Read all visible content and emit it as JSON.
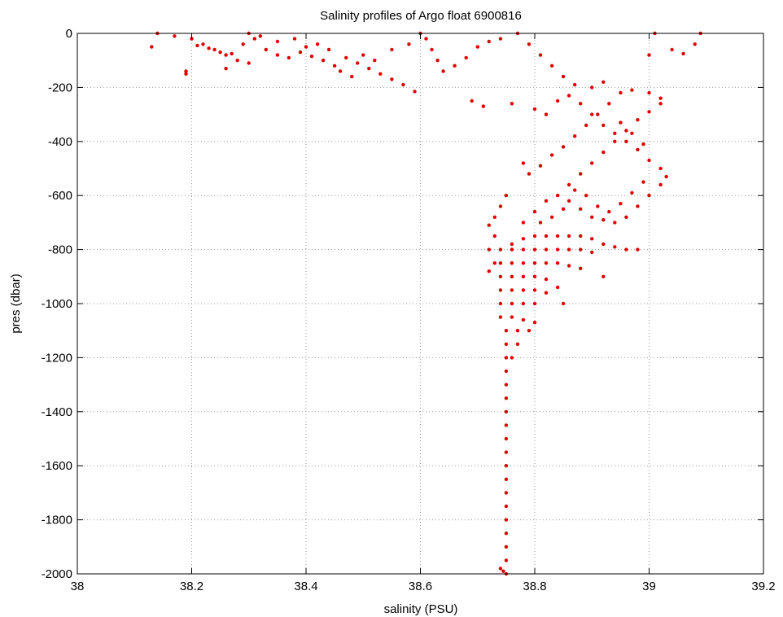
{
  "chart_data": {
    "type": "scatter",
    "title": "Salinity profiles of Argo float 6900816",
    "xlabel": "salinity (PSU)",
    "ylabel": "pres (dbar)",
    "xlim": [
      38,
      39.2
    ],
    "ylim": [
      -2000,
      0
    ],
    "xticks": [
      "38",
      "38.2",
      "38.4",
      "38.6",
      "38.8",
      "39",
      "39.2"
    ],
    "yticks": [
      "0",
      "-200",
      "-400",
      "-600",
      "-800",
      "-1000",
      "-1200",
      "-1400",
      "-1600",
      "-1800",
      "-2000"
    ],
    "grid": true,
    "marker_color": "#e00000",
    "points": [
      [
        38.14,
        0
      ],
      [
        38.17,
        -10
      ],
      [
        38.2,
        -20
      ],
      [
        38.22,
        -40
      ],
      [
        38.24,
        -60
      ],
      [
        38.26,
        -80
      ],
      [
        38.28,
        -100
      ],
      [
        38.3,
        -110
      ],
      [
        38.13,
        -50
      ],
      [
        38.19,
        -140
      ],
      [
        38.19,
        -150
      ],
      [
        38.26,
        -130
      ],
      [
        38.21,
        -45
      ],
      [
        38.23,
        -55
      ],
      [
        38.25,
        -70
      ],
      [
        38.27,
        -75
      ],
      [
        38.29,
        -40
      ],
      [
        38.31,
        -20
      ],
      [
        38.33,
        -60
      ],
      [
        38.35,
        -80
      ],
      [
        38.37,
        -90
      ],
      [
        38.39,
        -70
      ],
      [
        38.41,
        -85
      ],
      [
        38.43,
        -100
      ],
      [
        38.45,
        -120
      ],
      [
        38.47,
        -90
      ],
      [
        38.49,
        -110
      ],
      [
        38.51,
        -130
      ],
      [
        38.53,
        -150
      ],
      [
        38.55,
        -170
      ],
      [
        38.57,
        -190
      ],
      [
        38.59,
        -215
      ],
      [
        38.3,
        0
      ],
      [
        38.32,
        -10
      ],
      [
        38.35,
        -30
      ],
      [
        38.38,
        -20
      ],
      [
        38.4,
        -50
      ],
      [
        38.42,
        -40
      ],
      [
        38.44,
        -60
      ],
      [
        38.46,
        -140
      ],
      [
        38.48,
        -160
      ],
      [
        38.5,
        -80
      ],
      [
        38.52,
        -100
      ],
      [
        38.55,
        -60
      ],
      [
        38.58,
        -40
      ],
      [
        38.6,
        0
      ],
      [
        38.61,
        -20
      ],
      [
        38.62,
        -60
      ],
      [
        38.63,
        -100
      ],
      [
        38.64,
        -140
      ],
      [
        38.66,
        -120
      ],
      [
        38.68,
        -90
      ],
      [
        38.7,
        -50
      ],
      [
        38.72,
        -30
      ],
      [
        38.74,
        -20
      ],
      [
        38.77,
        0
      ],
      [
        38.79,
        -40
      ],
      [
        38.81,
        -80
      ],
      [
        38.83,
        -120
      ],
      [
        38.85,
        -160
      ],
      [
        38.87,
        -190
      ],
      [
        38.9,
        -200
      ],
      [
        38.92,
        -180
      ],
      [
        38.95,
        -220
      ],
      [
        38.97,
        -210
      ],
      [
        39.0,
        -220
      ],
      [
        39.02,
        -240
      ],
      [
        39.01,
        0
      ],
      [
        39.0,
        -80
      ],
      [
        39.04,
        -60
      ],
      [
        39.06,
        -75
      ],
      [
        39.09,
        0
      ],
      [
        39.08,
        -40
      ],
      [
        38.69,
        -250
      ],
      [
        38.71,
        -270
      ],
      [
        38.76,
        -260
      ],
      [
        38.8,
        -280
      ],
      [
        38.82,
        -300
      ],
      [
        38.84,
        -250
      ],
      [
        38.86,
        -230
      ],
      [
        38.88,
        -260
      ],
      [
        38.9,
        -300
      ],
      [
        38.92,
        -340
      ],
      [
        38.94,
        -370
      ],
      [
        38.96,
        -400
      ],
      [
        38.98,
        -430
      ],
      [
        39.0,
        -470
      ],
      [
        39.02,
        -500
      ],
      [
        39.03,
        -530
      ],
      [
        39.02,
        -560
      ],
      [
        39.0,
        -600
      ],
      [
        38.98,
        -640
      ],
      [
        38.96,
        -680
      ],
      [
        38.94,
        -700
      ],
      [
        38.92,
        -690
      ],
      [
        38.9,
        -680
      ],
      [
        38.88,
        -650
      ],
      [
        38.86,
        -620
      ],
      [
        38.84,
        -600
      ],
      [
        38.82,
        -620
      ],
      [
        38.8,
        -660
      ],
      [
        38.78,
        -700
      ],
      [
        38.86,
        -560
      ],
      [
        38.88,
        -520
      ],
      [
        38.9,
        -480
      ],
      [
        38.92,
        -440
      ],
      [
        38.94,
        -400
      ],
      [
        38.96,
        -360
      ],
      [
        38.98,
        -320
      ],
      [
        39.0,
        -290
      ],
      [
        39.02,
        -260
      ],
      [
        38.85,
        -420
      ],
      [
        38.83,
        -450
      ],
      [
        38.81,
        -490
      ],
      [
        38.79,
        -520
      ],
      [
        38.78,
        -480
      ],
      [
        38.87,
        -380
      ],
      [
        38.89,
        -340
      ],
      [
        38.91,
        -300
      ],
      [
        38.93,
        -260
      ],
      [
        38.95,
        -330
      ],
      [
        38.97,
        -370
      ],
      [
        38.99,
        -410
      ],
      [
        38.99,
        -550
      ],
      [
        38.97,
        -590
      ],
      [
        38.95,
        -630
      ],
      [
        38.93,
        -660
      ],
      [
        38.91,
        -640
      ],
      [
        38.89,
        -600
      ],
      [
        38.87,
        -580
      ],
      [
        38.85,
        -650
      ],
      [
        38.83,
        -680
      ],
      [
        38.81,
        -700
      ],
      [
        38.75,
        -600
      ],
      [
        38.74,
        -640
      ],
      [
        38.73,
        -680
      ],
      [
        38.72,
        -710
      ],
      [
        38.73,
        -750
      ],
      [
        38.72,
        -800
      ],
      [
        38.73,
        -850
      ],
      [
        38.72,
        -880
      ],
      [
        38.76,
        -780
      ],
      [
        38.78,
        -760
      ],
      [
        38.8,
        -750
      ],
      [
        38.82,
        -750
      ],
      [
        38.84,
        -750
      ],
      [
        38.86,
        -750
      ],
      [
        38.88,
        -750
      ],
      [
        38.9,
        -760
      ],
      [
        38.92,
        -780
      ],
      [
        38.94,
        -790
      ],
      [
        38.96,
        -800
      ],
      [
        38.98,
        -800
      ],
      [
        38.74,
        -800
      ],
      [
        38.76,
        -800
      ],
      [
        38.78,
        -800
      ],
      [
        38.8,
        -800
      ],
      [
        38.82,
        -800
      ],
      [
        38.84,
        -800
      ],
      [
        38.86,
        -800
      ],
      [
        38.88,
        -800
      ],
      [
        38.9,
        -810
      ],
      [
        38.74,
        -850
      ],
      [
        38.76,
        -850
      ],
      [
        38.78,
        -850
      ],
      [
        38.8,
        -850
      ],
      [
        38.82,
        -850
      ],
      [
        38.84,
        -850
      ],
      [
        38.86,
        -860
      ],
      [
        38.88,
        -870
      ],
      [
        38.92,
        -900
      ],
      [
        38.74,
        -900
      ],
      [
        38.76,
        -900
      ],
      [
        38.78,
        -900
      ],
      [
        38.8,
        -900
      ],
      [
        38.82,
        -910
      ],
      [
        38.84,
        -940
      ],
      [
        38.74,
        -950
      ],
      [
        38.76,
        -950
      ],
      [
        38.78,
        -950
      ],
      [
        38.8,
        -950
      ],
      [
        38.82,
        -960
      ],
      [
        38.74,
        -1000
      ],
      [
        38.76,
        -1000
      ],
      [
        38.78,
        -1000
      ],
      [
        38.8,
        -1000
      ],
      [
        38.85,
        -1000
      ],
      [
        38.74,
        -1050
      ],
      [
        38.76,
        -1050
      ],
      [
        38.78,
        -1060
      ],
      [
        38.8,
        -1070
      ],
      [
        38.75,
        -1100
      ],
      [
        38.77,
        -1100
      ],
      [
        38.79,
        -1100
      ],
      [
        38.75,
        -1150
      ],
      [
        38.77,
        -1150
      ],
      [
        38.75,
        -1200
      ],
      [
        38.76,
        -1200
      ],
      [
        38.75,
        -1250
      ],
      [
        38.75,
        -1300
      ],
      [
        38.75,
        -1350
      ],
      [
        38.75,
        -1400
      ],
      [
        38.75,
        -1450
      ],
      [
        38.75,
        -1500
      ],
      [
        38.75,
        -1550
      ],
      [
        38.75,
        -1600
      ],
      [
        38.75,
        -1650
      ],
      [
        38.75,
        -1700
      ],
      [
        38.75,
        -1750
      ],
      [
        38.75,
        -1800
      ],
      [
        38.75,
        -1850
      ],
      [
        38.75,
        -1900
      ],
      [
        38.75,
        -1950
      ],
      [
        38.75,
        -2000
      ],
      [
        38.74,
        -1980
      ],
      [
        38.745,
        -1990
      ]
    ]
  }
}
